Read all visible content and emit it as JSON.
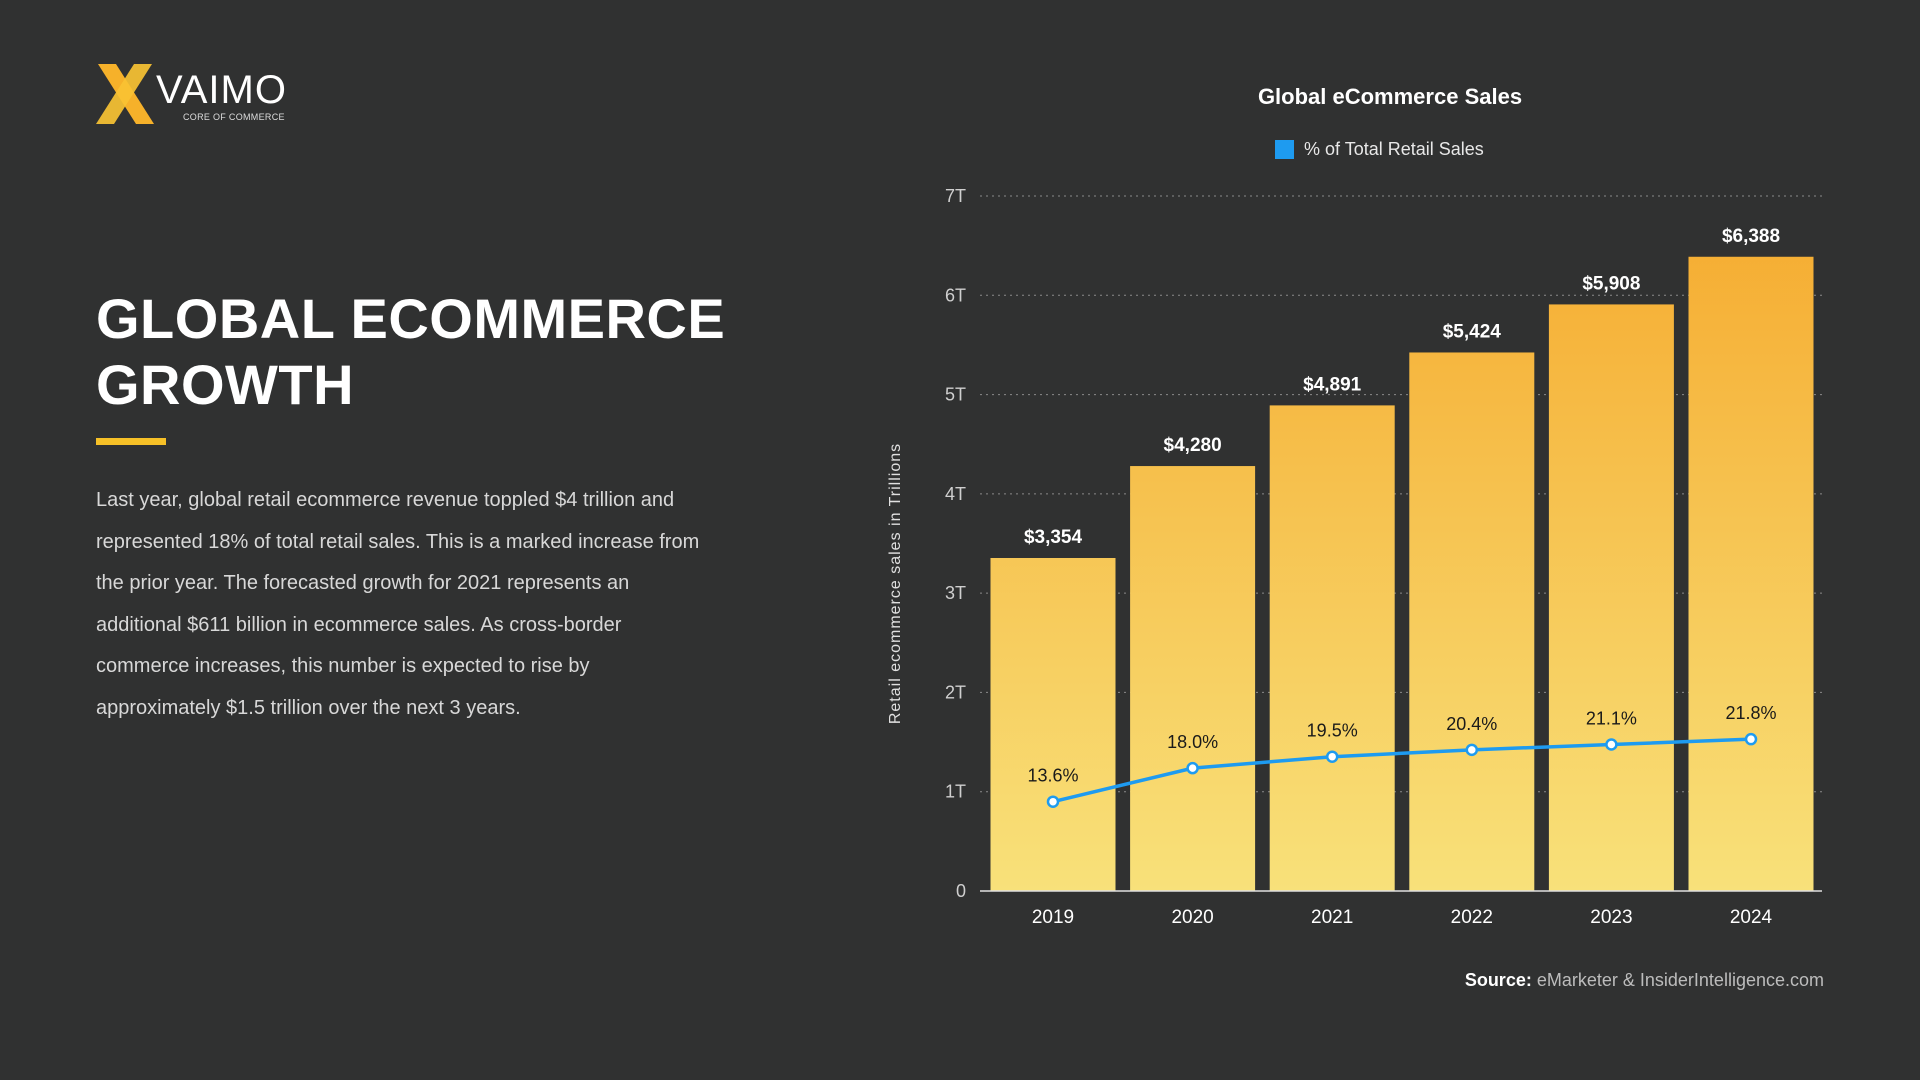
{
  "logo": {
    "brand": "VAIMO",
    "tagline": "CORE OF COMMERCE",
    "color": "#f6b12a"
  },
  "heading": {
    "line1": "GLOBAL ECOMMERCE",
    "line2": "GROWTH",
    "accent_color": "#f6c027"
  },
  "paragraph": "Last year, global retail ecommerce revenue toppled $4 trillion and represented 18% of total retail sales. This is a marked increase from the prior year. The forecasted growth for 2021 represents an additional $611 billion in ecommerce sales. As cross-border commerce increases, this number is expected to rise by approximately $1.5 trillion over the next 3 years.",
  "source": {
    "label": "Source:",
    "text": "eMarketer & InsiderIntelligence.com"
  },
  "chart_data": {
    "type": "bar",
    "title": "Global eCommerce Sales",
    "ylabel": "Retail ecommerce sales in Trillions",
    "xlabel": "",
    "ylim": [
      0,
      7
    ],
    "yticks": [
      "0",
      "1T",
      "2T",
      "3T",
      "4T",
      "5T",
      "6T",
      "7T"
    ],
    "grid": true,
    "legend_placement": "top-center",
    "categories": [
      "2019",
      "2020",
      "2021",
      "2022",
      "2023",
      "2024"
    ],
    "series": [
      {
        "type": "bar",
        "values": [
          3354,
          4280,
          4891,
          5424,
          5908,
          6388
        ],
        "labels": [
          "$3,354",
          "$4,280",
          "$4,891",
          "$5,424",
          "$5,908",
          "$6,388"
        ],
        "unit": "billions USD",
        "color_top": "#f5aa2e",
        "color_bottom": "#f8e17a"
      },
      {
        "type": "line",
        "name": "% of Total Retail Sales",
        "values": [
          13.6,
          18.0,
          19.5,
          20.4,
          21.1,
          21.8
        ],
        "labels": [
          "13.6%",
          "18.0%",
          "19.5%",
          "20.4%",
          "21.1%",
          "21.8%"
        ],
        "color": "#1e9bf0"
      }
    ]
  }
}
